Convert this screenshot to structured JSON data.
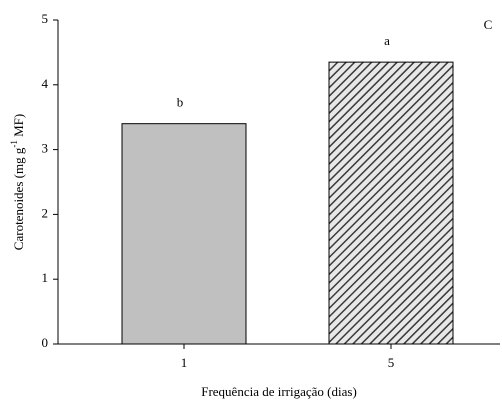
{
  "chart_data": {
    "type": "bar",
    "panel_label": "C",
    "xlabel": "Frequência de irrigação (dias)",
    "ylabel": {
      "text": "Carotenoides (mg g",
      "sup": "-1",
      "tail": " MF)"
    },
    "categories": [
      "1",
      "5"
    ],
    "values": [
      3.4,
      4.35
    ],
    "annotations": [
      "b",
      "a"
    ],
    "colors": [
      "#c0c0c0",
      "#3a3a3a"
    ],
    "hatch": [
      false,
      true
    ],
    "ylim": [
      0,
      5
    ],
    "yticks": [
      0,
      1,
      2,
      3,
      4,
      5
    ]
  }
}
